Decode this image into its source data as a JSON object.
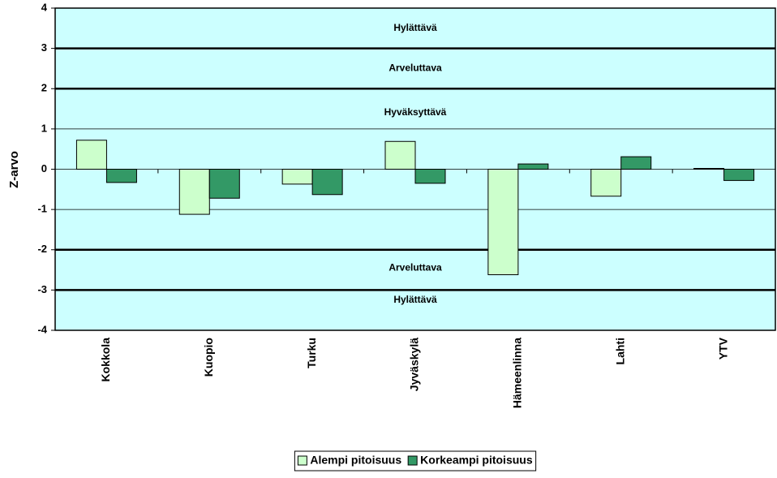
{
  "chart_data": {
    "type": "bar",
    "y_label": "Z-arvo",
    "categories": [
      "Kokkola",
      "Kuopio",
      "Turku",
      "Jyväskylä",
      "Hämeenlinna",
      "Lahti",
      "YTV"
    ],
    "series": [
      {
        "name": "Alempi pitoisuus",
        "color": "#ccffcc",
        "values": [
          0.72,
          -1.12,
          -0.37,
          0.69,
          -2.62,
          -0.67,
          0.02
        ]
      },
      {
        "name": "Korkeampi pitoisuus",
        "color": "#339966",
        "values": [
          -0.33,
          -0.72,
          -0.63,
          -0.35,
          0.13,
          0.31,
          -0.28
        ]
      }
    ],
    "ylim": [
      -4,
      4
    ],
    "yticks": [
      -4,
      -3,
      -2,
      -1,
      0,
      1,
      2,
      3,
      4
    ],
    "grid": true,
    "limit_lines": [
      3,
      2,
      -2,
      -3
    ],
    "annotations": [
      {
        "text": "Hylättävä",
        "y": 3.5
      },
      {
        "text": "Arveluttava",
        "y": 2.5
      },
      {
        "text": "Hyväksyttävä",
        "y": 1.4
      },
      {
        "text": "Arveluttava",
        "y": -2.45
      },
      {
        "text": "Hylättävä",
        "y": -3.25
      }
    ],
    "background": "#ccffff",
    "legend": "bottom"
  }
}
